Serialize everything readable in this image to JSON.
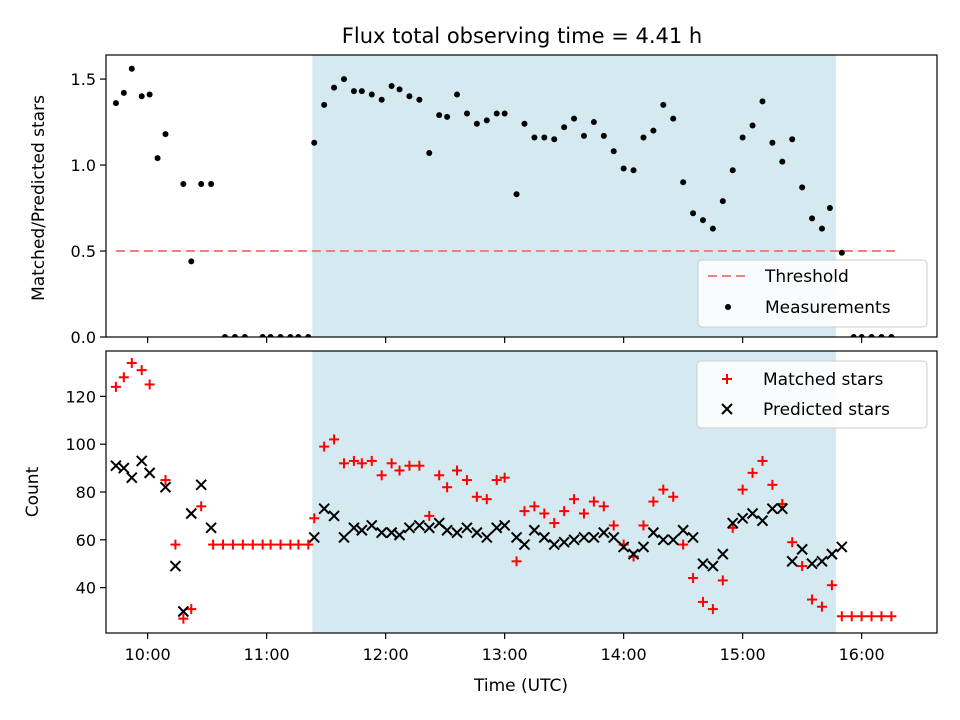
{
  "figure_title": "Flux total observing time = 4.41 h",
  "colors": {
    "shade": "#d4eaf0",
    "threshold": "#f08080",
    "measurement": "#000000",
    "matched": "#ff0000",
    "predicted": "#000000"
  },
  "chart_data": [
    {
      "type": "scatter",
      "title": "Flux total observing time = 4.41 h",
      "xlabel": "",
      "ylabel": "Matched/Predicted stars",
      "xlim": [
        "09:39",
        "16:38"
      ],
      "ylim": [
        0,
        1.64
      ],
      "yticks": [
        0.0,
        0.5,
        1.0,
        1.5
      ],
      "ytick_labels": [
        "0.0",
        "0.5",
        "1.0",
        "1.5"
      ],
      "grid": false,
      "shaded_interval": [
        "11:23",
        "15:47"
      ],
      "threshold": {
        "name": "Threshold",
        "y": 0.5,
        "x_start": "09:44",
        "x_end": "16:18"
      },
      "legend": {
        "position": "lower right",
        "entries": [
          "Threshold",
          "Measurements"
        ]
      },
      "series": [
        {
          "name": "Measurements",
          "points": [
            [
              "09:44",
              1.36
            ],
            [
              "09:48",
              1.42
            ],
            [
              "09:52",
              1.56
            ],
            [
              "09:57",
              1.4
            ],
            [
              "10:01",
              1.41
            ],
            [
              "10:05",
              1.04
            ],
            [
              "10:09",
              1.18
            ],
            [
              "10:18",
              0.89
            ],
            [
              "10:22",
              0.44
            ],
            [
              "10:27",
              0.89
            ],
            [
              "10:32",
              0.89
            ],
            [
              "10:39",
              0.0
            ],
            [
              "10:44",
              0.0
            ],
            [
              "10:49",
              0.0
            ],
            [
              "10:58",
              0.0
            ],
            [
              "11:02",
              0.0
            ],
            [
              "11:07",
              0.0
            ],
            [
              "11:12",
              0.0
            ],
            [
              "11:16",
              0.0
            ],
            [
              "11:21",
              0.0
            ],
            [
              "11:24",
              1.13
            ],
            [
              "11:29",
              1.35
            ],
            [
              "11:34",
              1.45
            ],
            [
              "11:39",
              1.5
            ],
            [
              "11:44",
              1.43
            ],
            [
              "11:48",
              1.43
            ],
            [
              "11:53",
              1.41
            ],
            [
              "11:58",
              1.38
            ],
            [
              "12:03",
              1.46
            ],
            [
              "12:07",
              1.44
            ],
            [
              "12:12",
              1.4
            ],
            [
              "12:17",
              1.38
            ],
            [
              "12:22",
              1.07
            ],
            [
              "12:27",
              1.29
            ],
            [
              "12:31",
              1.28
            ],
            [
              "12:36",
              1.41
            ],
            [
              "12:41",
              1.3
            ],
            [
              "12:46",
              1.24
            ],
            [
              "12:51",
              1.26
            ],
            [
              "12:56",
              1.3
            ],
            [
              "13:00",
              1.3
            ],
            [
              "13:06",
              0.83
            ],
            [
              "13:10",
              1.24
            ],
            [
              "13:15",
              1.16
            ],
            [
              "13:20",
              1.16
            ],
            [
              "13:25",
              1.15
            ],
            [
              "13:30",
              1.22
            ],
            [
              "13:35",
              1.27
            ],
            [
              "13:40",
              1.17
            ],
            [
              "13:45",
              1.25
            ],
            [
              "13:50",
              1.17
            ],
            [
              "13:55",
              1.08
            ],
            [
              "14:00",
              0.98
            ],
            [
              "14:05",
              0.97
            ],
            [
              "14:10",
              1.16
            ],
            [
              "14:15",
              1.2
            ],
            [
              "14:20",
              1.35
            ],
            [
              "14:25",
              1.27
            ],
            [
              "14:30",
              0.9
            ],
            [
              "14:35",
              0.72
            ],
            [
              "14:40",
              0.68
            ],
            [
              "14:45",
              0.63
            ],
            [
              "14:50",
              0.79
            ],
            [
              "14:55",
              0.97
            ],
            [
              "15:00",
              1.16
            ],
            [
              "15:05",
              1.23
            ],
            [
              "15:10",
              1.37
            ],
            [
              "15:15",
              1.13
            ],
            [
              "15:20",
              1.02
            ],
            [
              "15:25",
              1.15
            ],
            [
              "15:30",
              0.87
            ],
            [
              "15:35",
              0.69
            ],
            [
              "15:40",
              0.63
            ],
            [
              "15:44",
              0.75
            ],
            [
              "15:50",
              0.49
            ],
            [
              "15:56",
              0.0
            ],
            [
              "16:00",
              0.0
            ],
            [
              "16:05",
              0.0
            ],
            [
              "16:10",
              0.0
            ],
            [
              "16:15",
              0.0
            ]
          ]
        }
      ]
    },
    {
      "type": "scatter",
      "title": "",
      "xlabel": "Time (UTC)",
      "ylabel": "Count",
      "xlim": [
        "09:39",
        "16:38"
      ],
      "ylim": [
        21,
        139
      ],
      "yticks": [
        40,
        60,
        80,
        100,
        120
      ],
      "ytick_labels": [
        "40",
        "60",
        "80",
        "100",
        "120"
      ],
      "xticks": [
        "10:00",
        "11:00",
        "12:00",
        "13:00",
        "14:00",
        "15:00",
        "16:00"
      ],
      "grid": false,
      "shaded_interval": [
        "11:23",
        "15:47"
      ],
      "legend": {
        "position": "upper right",
        "entries": [
          "Matched stars",
          "Predicted stars"
        ]
      },
      "series": [
        {
          "name": "Matched stars",
          "marker": "+",
          "points": [
            [
              "09:44",
              124
            ],
            [
              "09:48",
              128
            ],
            [
              "09:52",
              134
            ],
            [
              "09:57",
              131
            ],
            [
              "10:01",
              125
            ],
            [
              "10:09",
              85
            ],
            [
              "10:14",
              58
            ],
            [
              "10:18",
              27
            ],
            [
              "10:22",
              31
            ],
            [
              "10:27",
              74
            ],
            [
              "10:33",
              58
            ],
            [
              "10:38",
              58
            ],
            [
              "10:43",
              58
            ],
            [
              "10:48",
              58
            ],
            [
              "10:53",
              58
            ],
            [
              "10:58",
              58
            ],
            [
              "11:02",
              58
            ],
            [
              "11:07",
              58
            ],
            [
              "11:12",
              58
            ],
            [
              "11:16",
              58
            ],
            [
              "11:21",
              58
            ],
            [
              "11:24",
              69
            ],
            [
              "11:29",
              99
            ],
            [
              "11:34",
              102
            ],
            [
              "11:39",
              92
            ],
            [
              "11:44",
              93
            ],
            [
              "11:48",
              92
            ],
            [
              "11:53",
              93
            ],
            [
              "11:58",
              87
            ],
            [
              "12:03",
              92
            ],
            [
              "12:07",
              89
            ],
            [
              "12:12",
              91
            ],
            [
              "12:17",
              91
            ],
            [
              "12:22",
              70
            ],
            [
              "12:27",
              87
            ],
            [
              "12:31",
              82
            ],
            [
              "12:36",
              89
            ],
            [
              "12:41",
              85
            ],
            [
              "12:46",
              78
            ],
            [
              "12:51",
              77
            ],
            [
              "12:56",
              85
            ],
            [
              "13:00",
              86
            ],
            [
              "13:06",
              51
            ],
            [
              "13:10",
              72
            ],
            [
              "13:15",
              74
            ],
            [
              "13:20",
              71
            ],
            [
              "13:25",
              67
            ],
            [
              "13:30",
              72
            ],
            [
              "13:35",
              77
            ],
            [
              "13:40",
              71
            ],
            [
              "13:45",
              76
            ],
            [
              "13:50",
              74
            ],
            [
              "13:55",
              66
            ],
            [
              "14:00",
              58
            ],
            [
              "14:05",
              53
            ],
            [
              "14:10",
              66
            ],
            [
              "14:15",
              76
            ],
            [
              "14:20",
              81
            ],
            [
              "14:25",
              78
            ],
            [
              "14:30",
              58
            ],
            [
              "14:35",
              44
            ],
            [
              "14:40",
              34
            ],
            [
              "14:45",
              31
            ],
            [
              "14:50",
              43
            ],
            [
              "14:55",
              65
            ],
            [
              "15:00",
              81
            ],
            [
              "15:05",
              88
            ],
            [
              "15:10",
              93
            ],
            [
              "15:15",
              83
            ],
            [
              "15:20",
              75
            ],
            [
              "15:25",
              59
            ],
            [
              "15:30",
              49
            ],
            [
              "15:35",
              35
            ],
            [
              "15:40",
              32
            ],
            [
              "15:45",
              41
            ],
            [
              "15:50",
              28
            ],
            [
              "15:55",
              28
            ],
            [
              "16:00",
              28
            ],
            [
              "16:05",
              28
            ],
            [
              "16:10",
              28
            ],
            [
              "16:15",
              28
            ]
          ]
        },
        {
          "name": "Predicted stars",
          "marker": "x",
          "points": [
            [
              "09:44",
              91
            ],
            [
              "09:48",
              90
            ],
            [
              "09:52",
              86
            ],
            [
              "09:57",
              93
            ],
            [
              "10:01",
              88
            ],
            [
              "10:09",
              82
            ],
            [
              "10:14",
              49
            ],
            [
              "10:18",
              30
            ],
            [
              "10:22",
              71
            ],
            [
              "10:27",
              83
            ],
            [
              "10:32",
              65
            ],
            [
              "11:24",
              61
            ],
            [
              "11:29",
              73
            ],
            [
              "11:34",
              70
            ],
            [
              "11:39",
              61
            ],
            [
              "11:44",
              65
            ],
            [
              "11:48",
              64
            ],
            [
              "11:53",
              66
            ],
            [
              "11:58",
              63
            ],
            [
              "12:03",
              63
            ],
            [
              "12:07",
              62
            ],
            [
              "12:12",
              65
            ],
            [
              "12:17",
              66
            ],
            [
              "12:22",
              65
            ],
            [
              "12:27",
              67
            ],
            [
              "12:31",
              64
            ],
            [
              "12:36",
              63
            ],
            [
              "12:41",
              65
            ],
            [
              "12:46",
              63
            ],
            [
              "12:51",
              61
            ],
            [
              "12:56",
              65
            ],
            [
              "13:00",
              66
            ],
            [
              "13:06",
              61
            ],
            [
              "13:10",
              58
            ],
            [
              "13:15",
              64
            ],
            [
              "13:20",
              61
            ],
            [
              "13:25",
              58
            ],
            [
              "13:30",
              59
            ],
            [
              "13:35",
              60
            ],
            [
              "13:40",
              61
            ],
            [
              "13:45",
              61
            ],
            [
              "13:50",
              63
            ],
            [
              "13:55",
              61
            ],
            [
              "14:00",
              57
            ],
            [
              "14:05",
              54
            ],
            [
              "14:10",
              57
            ],
            [
              "14:15",
              63
            ],
            [
              "14:20",
              60
            ],
            [
              "14:25",
              60
            ],
            [
              "14:30",
              64
            ],
            [
              "14:35",
              61
            ],
            [
              "14:40",
              50
            ],
            [
              "14:45",
              49
            ],
            [
              "14:50",
              54
            ],
            [
              "14:55",
              67
            ],
            [
              "15:00",
              69
            ],
            [
              "15:05",
              71
            ],
            [
              "15:10",
              68
            ],
            [
              "15:15",
              73
            ],
            [
              "15:20",
              73
            ],
            [
              "15:25",
              51
            ],
            [
              "15:30",
              56
            ],
            [
              "15:35",
              50
            ],
            [
              "15:40",
              51
            ],
            [
              "15:45",
              54
            ],
            [
              "15:50",
              57
            ]
          ]
        }
      ]
    }
  ]
}
